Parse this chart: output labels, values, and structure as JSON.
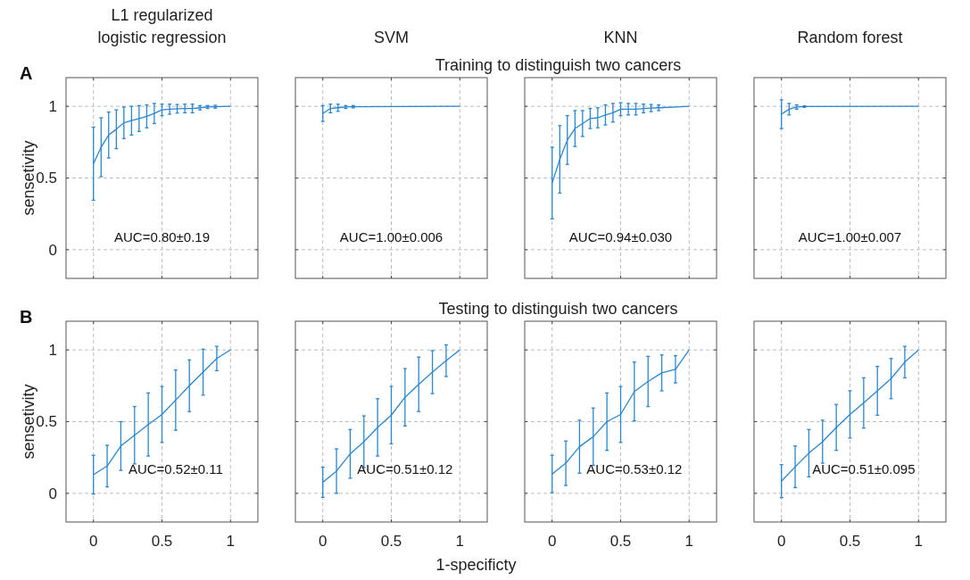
{
  "chart_data": [
    {
      "type": "line",
      "title": "L1 regularized\nlogistic regression",
      "ylabel": "sensetivity",
      "annotations": [
        "A",
        "AUC=0.80±0.19"
      ],
      "xlim": [
        -0.2,
        1.2
      ],
      "ylim": [
        -0.2,
        1.2
      ],
      "xticks": [
        0,
        0.5,
        1
      ],
      "yticks": [
        0,
        0.5,
        1
      ],
      "grid": true,
      "tick_labels": "y",
      "series": [
        {
          "color": "#2b86d0",
          "x": [
            0,
            0.056,
            0.111,
            0.167,
            0.222,
            0.278,
            0.333,
            0.389,
            0.444,
            0.5,
            0.556,
            0.611,
            0.667,
            0.722,
            0.778,
            0.833,
            0.889,
            1
          ],
          "values": [
            0.6,
            0.715,
            0.8,
            0.84,
            0.885,
            0.9,
            0.915,
            0.93,
            0.95,
            0.975,
            0.98,
            0.983,
            0.985,
            0.985,
            0.99,
            0.995,
            0.997,
            1
          ],
          "errors": [
            0.255,
            0.205,
            0.16,
            0.135,
            0.11,
            0.1,
            0.09,
            0.08,
            0.07,
            0.04,
            0.035,
            0.03,
            0.03,
            0.03,
            0.015,
            0.01,
            0.01,
            null
          ]
        }
      ]
    },
    {
      "type": "line",
      "title": "SVM",
      "annotations": [
        "AUC=1.00±0.006"
      ],
      "xlim": [
        -0.2,
        1.2
      ],
      "ylim": [
        -0.2,
        1.2
      ],
      "xticks": [
        0,
        0.5,
        1
      ],
      "yticks": [
        0,
        0.5,
        1
      ],
      "grid": true,
      "tick_labels": false,
      "series": [
        {
          "color": "#2b86d0",
          "x": [
            0,
            0.056,
            0.111,
            0.167,
            0.222,
            1
          ],
          "values": [
            0.95,
            0.985,
            0.99,
            0.995,
            0.997,
            1
          ],
          "errors": [
            0.055,
            0.03,
            0.025,
            0.01,
            0.008,
            null
          ]
        }
      ]
    },
    {
      "type": "line",
      "title": "KNN",
      "subtitle": "Training to distinguish two cancers",
      "annotations": [
        "AUC=0.94±0.030"
      ],
      "xlim": [
        -0.2,
        1.2
      ],
      "ylim": [
        -0.2,
        1.2
      ],
      "xticks": [
        0,
        0.5,
        1
      ],
      "yticks": [
        0,
        0.5,
        1
      ],
      "grid": true,
      "tick_labels": false,
      "series": [
        {
          "color": "#2b86d0",
          "x": [
            0,
            0.056,
            0.111,
            0.167,
            0.222,
            0.278,
            0.333,
            0.389,
            0.444,
            0.5,
            0.556,
            0.611,
            0.667,
            0.722,
            0.778,
            1
          ],
          "values": [
            0.465,
            0.63,
            0.765,
            0.845,
            0.88,
            0.915,
            0.92,
            0.94,
            0.955,
            0.98,
            0.98,
            0.98,
            0.985,
            0.988,
            0.99,
            1
          ],
          "errors": [
            0.25,
            0.235,
            0.17,
            0.125,
            0.09,
            0.07,
            0.07,
            0.07,
            0.065,
            0.045,
            0.04,
            0.04,
            0.03,
            0.025,
            0.02,
            null
          ]
        }
      ]
    },
    {
      "type": "line",
      "title": "Random forest",
      "annotations": [
        "AUC=1.00±0.007"
      ],
      "xlim": [
        -0.2,
        1.2
      ],
      "ylim": [
        -0.2,
        1.2
      ],
      "xticks": [
        0,
        0.5,
        1
      ],
      "yticks": [
        0,
        0.5,
        1
      ],
      "grid": true,
      "tick_labels": false,
      "series": [
        {
          "color": "#2b86d0",
          "x": [
            0,
            0.056,
            0.111,
            0.167,
            1
          ],
          "values": [
            0.945,
            0.98,
            0.995,
            0.998,
            1
          ],
          "errors": [
            0.1,
            0.04,
            0.015,
            0.005,
            null
          ]
        }
      ]
    },
    {
      "type": "line",
      "ylabel": "sensetivity",
      "annotations": [
        "B",
        "AUC=0.52±0.11"
      ],
      "xlim": [
        -0.2,
        1.2
      ],
      "ylim": [
        -0.2,
        1.2
      ],
      "xticks": [
        0,
        0.5,
        1
      ],
      "yticks": [
        0,
        0.5,
        1
      ],
      "grid": true,
      "series": [
        {
          "color": "#2b86d0",
          "x": [
            0,
            0.1,
            0.2,
            0.3,
            0.4,
            0.5,
            0.6,
            0.7,
            0.8,
            0.9,
            1
          ],
          "values": [
            0.13,
            0.19,
            0.33,
            0.405,
            0.48,
            0.55,
            0.65,
            0.75,
            0.845,
            0.94,
            1
          ],
          "errors": [
            0.135,
            0.145,
            0.17,
            0.2,
            0.22,
            0.195,
            0.21,
            0.18,
            0.16,
            0.085,
            null
          ]
        }
      ]
    },
    {
      "type": "line",
      "xlabel": "1-specificty",
      "annotations": [
        "AUC=0.51±0.12"
      ],
      "xlim": [
        -0.2,
        1.2
      ],
      "ylim": [
        -0.2,
        1.2
      ],
      "xticks": [
        0,
        0.5,
        1
      ],
      "yticks": [
        0,
        0.5,
        1
      ],
      "grid": true,
      "tick_labels": "x",
      "series": [
        {
          "color": "#2b86d0",
          "x": [
            0,
            0.1,
            0.2,
            0.3,
            0.4,
            0.5,
            0.6,
            0.7,
            0.8,
            0.9,
            1
          ],
          "values": [
            0.077,
            0.155,
            0.275,
            0.36,
            0.46,
            0.545,
            0.67,
            0.76,
            0.845,
            0.925,
            1
          ],
          "errors": [
            0.105,
            0.155,
            0.17,
            0.18,
            0.2,
            0.2,
            0.2,
            0.19,
            0.15,
            0.11,
            null
          ]
        }
      ]
    },
    {
      "type": "line",
      "subtitle": "Testing to distinguish two cancers",
      "annotations": [
        "AUC=0.53±0.12"
      ],
      "xlim": [
        -0.2,
        1.2
      ],
      "ylim": [
        -0.2,
        1.2
      ],
      "xticks": [
        0,
        0.5,
        1
      ],
      "yticks": [
        0,
        0.5,
        1
      ],
      "grid": true,
      "tick_labels": "x",
      "series": [
        {
          "color": "#2b86d0",
          "x": [
            0,
            0.1,
            0.2,
            0.3,
            0.4,
            0.5,
            0.6,
            0.7,
            0.8,
            0.9,
            1
          ],
          "values": [
            0.135,
            0.21,
            0.325,
            0.395,
            0.5,
            0.55,
            0.71,
            0.78,
            0.84,
            0.865,
            1
          ],
          "errors": [
            0.13,
            0.155,
            0.185,
            0.2,
            0.2,
            0.195,
            0.205,
            0.175,
            0.125,
            0.095,
            null
          ]
        }
      ]
    },
    {
      "type": "line",
      "annotations": [
        "AUC=0.51±0.095"
      ],
      "xlim": [
        -0.2,
        1.2
      ],
      "ylim": [
        -0.2,
        1.2
      ],
      "xticks": [
        0,
        0.5,
        1
      ],
      "yticks": [
        0,
        0.5,
        1
      ],
      "grid": true,
      "tick_labels": "x",
      "series": [
        {
          "color": "#2b86d0",
          "x": [
            0,
            0.1,
            0.2,
            0.3,
            0.4,
            0.5,
            0.6,
            0.7,
            0.8,
            0.9,
            1
          ],
          "values": [
            0.085,
            0.185,
            0.28,
            0.36,
            0.46,
            0.55,
            0.63,
            0.715,
            0.8,
            0.915,
            1
          ],
          "errors": [
            0.115,
            0.145,
            0.165,
            0.15,
            0.16,
            0.165,
            0.175,
            0.17,
            0.14,
            0.11,
            null
          ]
        }
      ]
    }
  ]
}
